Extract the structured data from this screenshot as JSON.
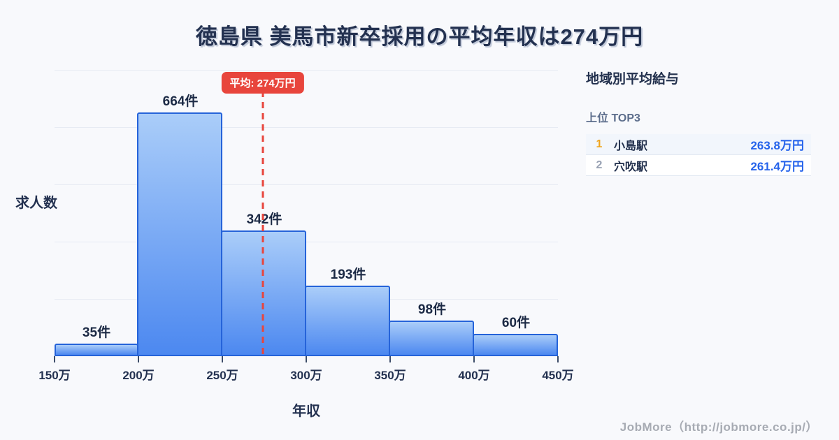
{
  "title": "徳島県 美馬市新卒採用の平均年収は274万円",
  "chart_data": {
    "type": "bar",
    "title": "徳島県 美馬市新卒採用の平均年収は274万円",
    "xlabel": "年収",
    "ylabel": "求人数",
    "categories": [
      "150万〜200万",
      "200万〜250万",
      "250万〜300万",
      "300万〜350万",
      "350万〜400万",
      "400万〜450万"
    ],
    "values": [
      35,
      664,
      342,
      193,
      98,
      60
    ],
    "bar_labels": [
      "35件",
      "664件",
      "342件",
      "193件",
      "98件",
      "60件"
    ],
    "x_tick_labels": [
      "150万",
      "200万",
      "250万",
      "300万",
      "350万",
      "400万",
      "450万"
    ],
    "xlim_man_yen": [
      150,
      450
    ],
    "ylim": [
      0,
      780
    ],
    "grid": true,
    "legend_position": "none",
    "mean": {
      "value_man_yen": 274,
      "badge_label": "平均: 274万円",
      "line_style": "dashed"
    }
  },
  "panel": {
    "heading": "地域別平均給与",
    "subheading": "上位 TOP3",
    "rows": [
      {
        "rank": "1",
        "name": "小島駅",
        "value": "263.8万円"
      },
      {
        "rank": "2",
        "name": "穴吹駅",
        "value": "261.4万円"
      }
    ]
  },
  "footer": {
    "credit": "JobMore（http://jobmore.co.jp/）"
  },
  "colors": {
    "background": "#f8f9fc",
    "title_text": "#233150",
    "grid": "#e7ebf3",
    "bar_fill_top": "#aacdf9",
    "bar_fill_bottom": "#4c88f0",
    "bar_border": "#2563d9",
    "mean_red": "#e8453c",
    "value_blue": "#2563eb",
    "rank1_gold": "#f0a41c",
    "rank2_grey": "#98a1b3",
    "footer_grey": "#a7abb3"
  }
}
